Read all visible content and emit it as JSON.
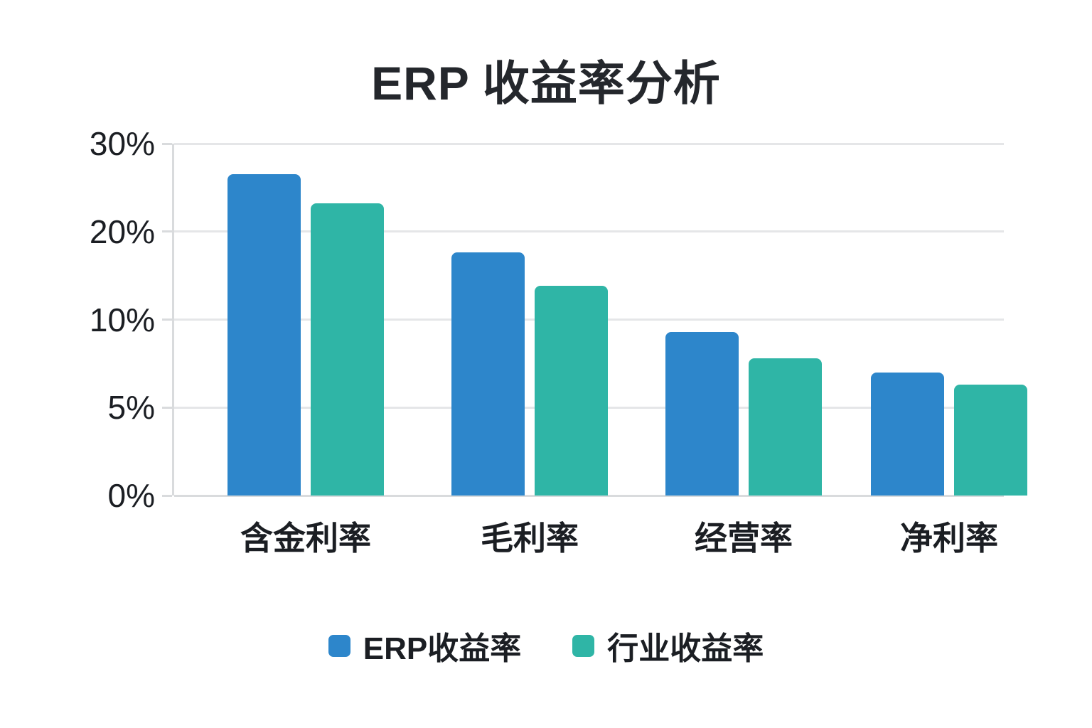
{
  "chart_data": {
    "type": "bar",
    "title": "ERP 收益率分析",
    "categories": [
      "含金利率",
      "毛利率",
      "经营率",
      "净利率"
    ],
    "series": [
      {
        "name": "ERP收益率",
        "color": "#2d86cb",
        "values": [
          26.5,
          17.6,
          9.3,
          7.0
        ]
      },
      {
        "name": "行业收益率",
        "color": "#2fb5a6",
        "values": [
          23.2,
          13.8,
          7.8,
          6.3
        ]
      }
    ],
    "y_axis": {
      "ticks": [
        0,
        5,
        10,
        20,
        30
      ],
      "tick_labels": [
        "0%",
        "5%",
        "10%",
        "20%",
        "30%"
      ],
      "scale": "ticks evenly spaced (non-linear value axis)"
    },
    "legend_position": "bottom",
    "grid": true,
    "colors": {
      "background": "#ffffff",
      "text": "#1b1e23",
      "gridline": "#e5e6e8",
      "axis": "#d9dbdd"
    }
  }
}
